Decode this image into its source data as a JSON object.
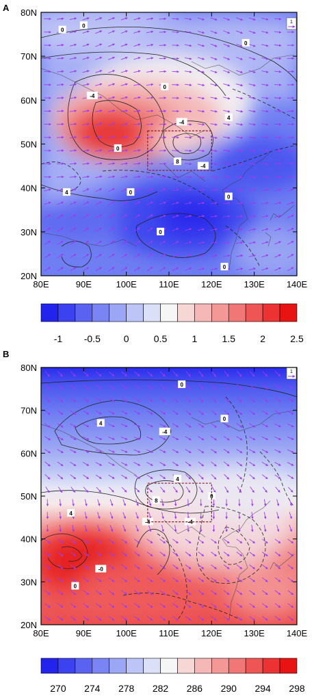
{
  "panels": [
    {
      "label": "A",
      "lon_ticks": [
        "80E",
        "90E",
        "100E",
        "110E",
        "120E",
        "130E",
        "140E"
      ],
      "lat_ticks": [
        "80N",
        "70N",
        "60N",
        "50N",
        "40N",
        "30N",
        "20N"
      ],
      "extent": {
        "lon": [
          80,
          140
        ],
        "lat": [
          20,
          80
        ]
      },
      "region_box": {
        "lon": [
          105,
          120
        ],
        "lat": [
          44,
          53
        ]
      },
      "reference_vector_label": "1",
      "contour_labels": [
        {
          "text": "0",
          "lon": 85,
          "lat": 76
        },
        {
          "text": "0",
          "lon": 90,
          "lat": 77
        },
        {
          "text": "0",
          "lon": 128,
          "lat": 73
        },
        {
          "text": "-4",
          "lon": 92,
          "lat": 61
        },
        {
          "text": "0",
          "lon": 109,
          "lat": 63
        },
        {
          "text": "-4",
          "lon": 113,
          "lat": 55
        },
        {
          "text": "4",
          "lon": 124,
          "lat": 56
        },
        {
          "text": "0",
          "lon": 98,
          "lat": 49
        },
        {
          "text": "8",
          "lon": 112,
          "lat": 46
        },
        {
          "text": "-4",
          "lon": 118,
          "lat": 45
        },
        {
          "text": "4",
          "lon": 86,
          "lat": 39
        },
        {
          "text": "0",
          "lon": 101,
          "lat": 39
        },
        {
          "text": "0",
          "lon": 124,
          "lat": 38
        },
        {
          "text": "0",
          "lon": 108,
          "lat": 30
        },
        {
          "text": "0",
          "lon": 123,
          "lat": 22
        }
      ],
      "colorbar": {
        "colors": [
          "#2323ee",
          "#3d42f0",
          "#5a63f1",
          "#7a85f3",
          "#9ba6f4",
          "#bcc5f6",
          "#dbe0f8",
          "#f6f6f6",
          "#f7d6d6",
          "#f6b7b7",
          "#f49797",
          "#f17777",
          "#ee5555",
          "#ec3232",
          "#e81414"
        ],
        "tick_labels": [
          "-1",
          "-0.5",
          "0",
          "0.5",
          "1",
          "1.5",
          "2",
          "2.5"
        ],
        "tick_positions": [
          1,
          3,
          5,
          7,
          9,
          11,
          13,
          15
        ],
        "min": -1.5,
        "max": 2.75
      }
    },
    {
      "label": "B",
      "lon_ticks": [
        "80E",
        "90E",
        "100E",
        "110E",
        "120E",
        "130E",
        "140E"
      ],
      "lat_ticks": [
        "80N",
        "70N",
        "60N",
        "50N",
        "40N",
        "30N",
        "20N"
      ],
      "extent": {
        "lon": [
          80,
          140
        ],
        "lat": [
          20,
          80
        ]
      },
      "region_box": {
        "lon": [
          105,
          120
        ],
        "lat": [
          44,
          53
        ]
      },
      "reference_vector_label": "1",
      "contour_labels": [
        {
          "text": "0",
          "lon": 113,
          "lat": 76
        },
        {
          "text": "4",
          "lon": 94,
          "lat": 67
        },
        {
          "text": "-4",
          "lon": 109,
          "lat": 65
        },
        {
          "text": "0",
          "lon": 123,
          "lat": 68
        },
        {
          "text": "4",
          "lon": 112,
          "lat": 54
        },
        {
          "text": "8",
          "lon": 107,
          "lat": 49
        },
        {
          "text": "4",
          "lon": 87,
          "lat": 46
        },
        {
          "text": "-4",
          "lon": 105,
          "lat": 44
        },
        {
          "text": "-4",
          "lon": 115,
          "lat": 44
        },
        {
          "text": "0",
          "lon": 120,
          "lat": 50
        },
        {
          "text": "-0",
          "lon": 94,
          "lat": 33
        },
        {
          "text": "0",
          "lon": 88,
          "lat": 29
        }
      ],
      "colorbar": {
        "colors": [
          "#2323ee",
          "#3d42f0",
          "#5a63f1",
          "#7a85f3",
          "#9ba6f4",
          "#bcc5f6",
          "#dbe0f8",
          "#f6f6f6",
          "#f7d6d6",
          "#f6b7b7",
          "#f49797",
          "#f17777",
          "#ee5555",
          "#ec3232",
          "#e81414"
        ],
        "tick_labels": [
          "270",
          "274",
          "278",
          "282",
          "286",
          "290",
          "294",
          "298"
        ],
        "tick_positions": [
          1,
          3,
          5,
          7,
          9,
          11,
          13,
          15
        ],
        "min": 268,
        "max": 300
      }
    }
  ]
}
